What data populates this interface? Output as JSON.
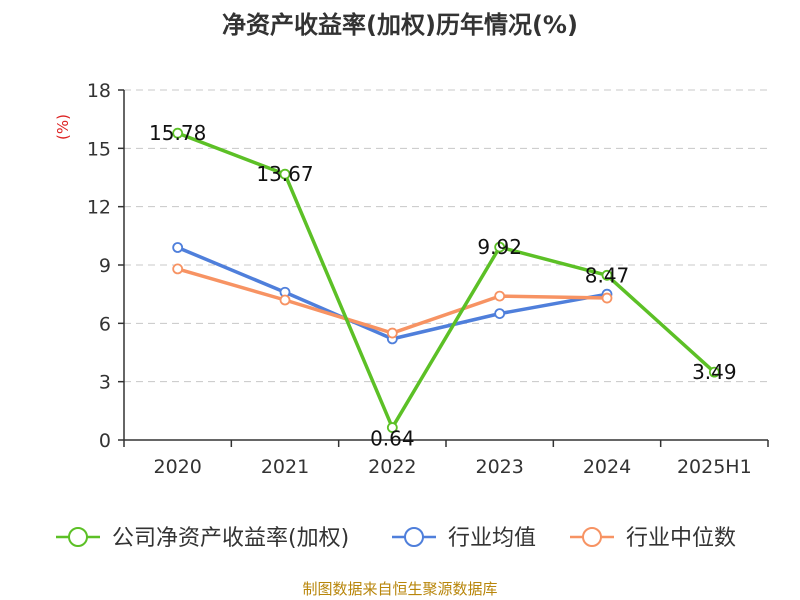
{
  "chart_data": {
    "type": "line",
    "title": "净资产收益率(加权)历年情况(%)",
    "ylabel": "(%)",
    "xlabel": "",
    "categories": [
      "2020",
      "2021",
      "2022",
      "2023",
      "2024",
      "2025H1"
    ],
    "ylim": [
      0,
      18
    ],
    "yticks": [
      0,
      3,
      6,
      9,
      12,
      15,
      18
    ],
    "grid": true,
    "legend_position": "bottom",
    "series": [
      {
        "name": "公司净资产收益率(加权)",
        "color": "#5cc026",
        "values": [
          15.78,
          13.67,
          0.64,
          9.92,
          8.47,
          3.49
        ],
        "data_labels": [
          "15.78",
          "13.67",
          "0.64",
          "9.92",
          "8.47",
          "3.49"
        ]
      },
      {
        "name": "行业均值",
        "color": "#4f7fdb",
        "values": [
          9.9,
          7.6,
          5.2,
          6.5,
          7.5,
          null
        ]
      },
      {
        "name": "行业中位数",
        "color": "#f79363",
        "values": [
          8.8,
          7.2,
          5.5,
          7.4,
          7.3,
          null
        ]
      }
    ]
  },
  "source_text": "制图数据来自恒生聚源数据库"
}
